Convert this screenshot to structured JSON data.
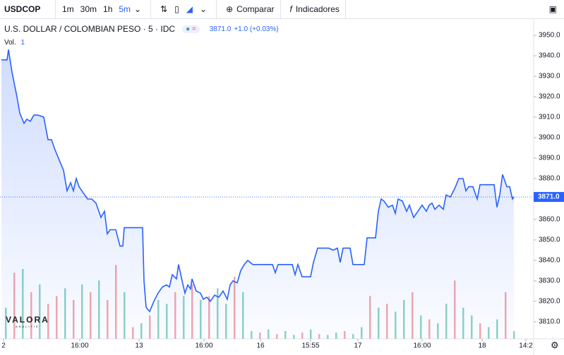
{
  "toolbar": {
    "symbol": "USDCOP",
    "intervals": [
      "1m",
      "30m",
      "1h",
      "5m"
    ],
    "active_interval": 3,
    "compare": "Comparar",
    "indicators": "Indicadores"
  },
  "legend": {
    "title": "U.S. DOLLAR / COLOMBIAN PESO · 5 · IDC",
    "change": "+1.0 (+0.03%)",
    "volume_label": "Vol.",
    "volume_value": "1"
  },
  "watermark": {
    "name": "VALORA",
    "sub": "ANALITIK"
  },
  "chart_data": {
    "type": "line",
    "last_price": {
      "value": 3871,
      "label": "3871.0"
    },
    "series": [
      {
        "color": "#2962ff",
        "x": [
          0.5,
          2.5,
          3,
          4.25,
          6,
          7,
          8.5,
          9.5,
          10.75,
          12,
          13.5,
          15.5,
          17,
          18.25,
          19.5,
          21,
          22.5,
          23.75,
          25,
          26,
          27,
          28,
          29.5,
          31,
          32.5,
          34,
          35.75,
          37,
          38,
          39,
          41,
          42.5,
          43.5,
          44,
          47.5,
          50.5,
          51,
          51.75,
          53,
          54.5,
          56,
          57.5,
          59,
          60,
          61,
          62.5,
          63.25,
          64.5,
          65.5,
          66.5,
          67.5,
          68,
          69.5,
          71,
          72,
          73.25,
          74.5,
          76,
          77.5,
          79,
          80.5,
          81.5,
          82.5,
          84,
          85.25,
          86.5,
          87.75,
          89.5,
          91.5,
          93,
          96.5,
          97.5,
          98.5,
          103.5,
          104.5,
          105.5,
          107,
          110,
          111,
          112.5,
          116.5,
          118,
          119.5,
          120.5,
          121.5,
          124,
          125,
          129,
          130,
          133,
          134,
          135,
          136,
          137.5,
          139,
          140,
          141,
          142.5,
          144,
          145,
          146.5,
          148,
          149.5,
          151,
          152,
          153,
          154,
          155.5,
          157,
          158,
          159.5,
          161,
          162.5,
          164,
          165,
          166,
          167.5,
          169,
          170,
          173.5,
          175,
          176,
          177,
          178,
          179.5,
          180.5,
          181.5,
          182
        ],
        "values": [
          3938,
          3938,
          3943,
          3932,
          3920,
          3912,
          3907,
          3909,
          3908,
          3911,
          3911,
          3910,
          3899,
          3899,
          3894,
          3889,
          3884,
          3874,
          3878,
          3874,
          3880,
          3876,
          3873,
          3870,
          3870,
          3868,
          3861,
          3864,
          3853,
          3855,
          3855,
          3847,
          3847,
          3856,
          3856,
          3856,
          3830,
          3817,
          3815,
          3820,
          3824,
          3827,
          3828,
          3827,
          3833,
          3831,
          3838,
          3830,
          3824,
          3828,
          3826,
          3831,
          3825,
          3824,
          3821,
          3822,
          3820,
          3823,
          3822,
          3825,
          3821,
          3828,
          3830,
          3829,
          3835,
          3838,
          3840,
          3838,
          3838,
          3838,
          3838,
          3834,
          3838,
          3838,
          3833,
          3838,
          3832,
          3832,
          3839,
          3846,
          3846,
          3845,
          3846,
          3839,
          3846,
          3846,
          3838,
          3838,
          3851,
          3851,
          3864,
          3870,
          3869,
          3866,
          3867,
          3863,
          3870,
          3869,
          3864,
          3867,
          3861,
          3864,
          3867,
          3864,
          3867,
          3868,
          3865,
          3867,
          3865,
          3872,
          3871,
          3875,
          3880,
          3880,
          3874,
          3876,
          3876,
          3870,
          3877,
          3877,
          3877,
          3866,
          3872,
          3882,
          3876,
          3876,
          3870,
          3871
        ]
      }
    ],
    "volume": {
      "up_color": "#8fd3c5",
      "down_color": "#f2a9ad",
      "vlim": [
        0,
        100
      ],
      "x": [
        2,
        5,
        8,
        11,
        14,
        17,
        20,
        23,
        26,
        29,
        32,
        35,
        38,
        41,
        44,
        47,
        50,
        53,
        56,
        59,
        62,
        65,
        68,
        71,
        74,
        77,
        80,
        83,
        86,
        89,
        92,
        95,
        98,
        101,
        104,
        107,
        110,
        113,
        116,
        119,
        122,
        125,
        128,
        131,
        134,
        137,
        140,
        143,
        146,
        149,
        152,
        155,
        158,
        161,
        164,
        167,
        170,
        173,
        176,
        179,
        182
      ],
      "values": [
        40,
        85,
        90,
        60,
        70,
        45,
        55,
        65,
        50,
        70,
        60,
        75,
        50,
        95,
        60,
        15,
        20,
        30,
        50,
        45,
        60,
        55,
        70,
        50,
        55,
        65,
        45,
        80,
        60,
        10,
        8,
        12,
        6,
        10,
        5,
        8,
        12,
        6,
        5,
        8,
        10,
        6,
        15,
        55,
        40,
        45,
        35,
        50,
        60,
        30,
        25,
        20,
        45,
        75,
        40,
        30,
        20,
        15,
        25,
        60,
        10
      ],
      "up": [
        true,
        false,
        true,
        false,
        true,
        false,
        false,
        true,
        false,
        true,
        false,
        true,
        false,
        false,
        true,
        false,
        true,
        false,
        true,
        true,
        false,
        true,
        false,
        true,
        false,
        true,
        true,
        false,
        true,
        true,
        false,
        true,
        false,
        true,
        true,
        false,
        true,
        false,
        true,
        true,
        false,
        true,
        true,
        false,
        true,
        false,
        true,
        true,
        false,
        true,
        false,
        true,
        true,
        false,
        true,
        true,
        false,
        true,
        true,
        false,
        true
      ]
    },
    "xlim": [
      0,
      189
    ],
    "xticks": [
      {
        "value": 1.25,
        "label": "2"
      },
      {
        "value": 28.25,
        "label": "16:00"
      },
      {
        "value": 49.25,
        "label": "13"
      },
      {
        "value": 72.25,
        "label": "16:00"
      },
      {
        "value": 92.25,
        "label": "16"
      },
      {
        "value": 110,
        "label": "15:55"
      },
      {
        "value": 126.75,
        "label": "17"
      },
      {
        "value": 149.5,
        "label": "16:00"
      },
      {
        "value": 170.75,
        "label": "18"
      },
      {
        "value": 186.25,
        "label": "14:2"
      }
    ],
    "ylim": [
      3801.7,
      3957.6
    ],
    "yticks": [
      {
        "value": 3810,
        "label": "3810.0"
      },
      {
        "value": 3820,
        "label": "3820.0"
      },
      {
        "value": 3830,
        "label": "3830.0"
      },
      {
        "value": 3840,
        "label": "3840.0"
      },
      {
        "value": 3850,
        "label": "3850.0"
      },
      {
        "value": 3860,
        "label": "3860.0"
      },
      {
        "value": 3870,
        "label": "3870.0"
      },
      {
        "value": 3880,
        "label": "3880.0"
      },
      {
        "value": 3890,
        "label": "3890.0"
      },
      {
        "value": 3900,
        "label": "3900.0"
      },
      {
        "value": 3910,
        "label": "3910.0"
      },
      {
        "value": 3920,
        "label": "3920.0"
      },
      {
        "value": 3930,
        "label": "3930.0"
      },
      {
        "value": 3940,
        "label": "3940.0"
      },
      {
        "value": 3950,
        "label": "3950.0"
      }
    ]
  }
}
